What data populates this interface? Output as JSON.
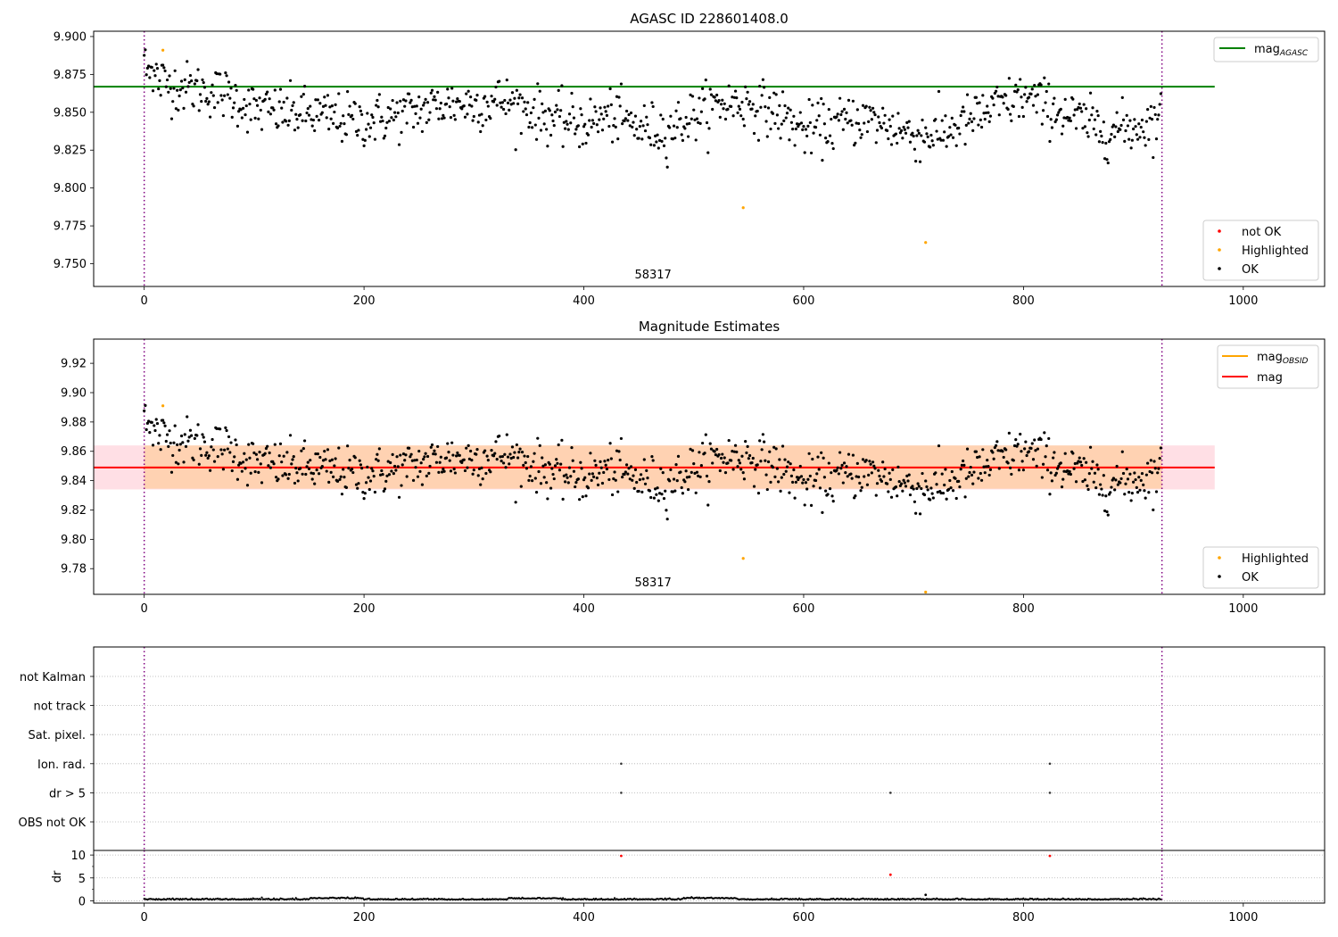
{
  "chart_data": [
    {
      "type": "scatter",
      "panel": "top",
      "title": "AGASC ID 228601408.0",
      "xlim": [
        -46,
        1074
      ],
      "ylim": [
        9.735,
        9.9035
      ],
      "xticks": [
        0,
        200,
        400,
        600,
        800,
        1000
      ],
      "yticks": [
        9.75,
        9.775,
        9.8,
        9.825,
        9.85,
        9.875,
        9.9
      ],
      "ytick_labels": [
        "9.750",
        "9.775",
        "9.800",
        "9.825",
        "9.850",
        "9.875",
        "9.900"
      ],
      "vlines": [
        0,
        926
      ],
      "mag_agasc": 9.8669,
      "mag_agasc_xrange": [
        -46,
        974
      ],
      "obsid_label": "58317",
      "obsid_label_x": 463,
      "n_points": 926,
      "series_ok_trend": {
        "x": [
          0,
          25,
          50,
          75,
          100,
          125,
          150,
          175,
          200,
          225,
          250,
          275,
          300,
          325,
          350,
          375,
          400,
          425,
          450,
          475,
          500,
          525,
          550,
          575,
          600,
          625,
          650,
          675,
          700,
          725,
          750,
          775,
          800,
          825,
          850,
          875,
          900,
          925
        ],
        "y": [
          9.875,
          9.868,
          9.865,
          9.862,
          9.852,
          9.85,
          9.849,
          9.846,
          9.844,
          9.847,
          9.851,
          9.856,
          9.855,
          9.858,
          9.852,
          9.845,
          9.842,
          9.848,
          9.84,
          9.838,
          9.848,
          9.856,
          9.856,
          9.85,
          9.838,
          9.841,
          9.846,
          9.842,
          9.835,
          9.836,
          9.844,
          9.853,
          9.86,
          9.853,
          9.845,
          9.838,
          9.84,
          9.846
        ],
        "scatter_sd": 0.01
      },
      "highlighted_points": [
        {
          "x": 17,
          "y": 9.891
        },
        {
          "x": 545,
          "y": 9.787
        },
        {
          "x": 711,
          "y": 9.764
        }
      ],
      "legend_line": {
        "label": "mag",
        "subscript": "AGASC",
        "color": "#008000"
      },
      "legend_points": [
        {
          "label": "not OK",
          "color": "#ff0000"
        },
        {
          "label": "Highlighted",
          "color": "#ffa500"
        },
        {
          "label": "OK",
          "color": "#000000"
        }
      ]
    },
    {
      "type": "scatter",
      "panel": "middle",
      "title": "Magnitude Estimates",
      "xlim": [
        -46,
        1074
      ],
      "ylim": [
        9.7625,
        9.9365
      ],
      "xticks": [
        0,
        200,
        400,
        600,
        800,
        1000
      ],
      "yticks": [
        9.78,
        9.8,
        9.82,
        9.84,
        9.86,
        9.88,
        9.9,
        9.92
      ],
      "ytick_labels": [
        "9.78",
        "9.80",
        "9.82",
        "9.84",
        "9.86",
        "9.88",
        "9.90",
        "9.92"
      ],
      "vlines": [
        0,
        926
      ],
      "mag": 9.849,
      "mag_band": [
        9.834,
        9.864
      ],
      "mag_obsid": 9.849,
      "mag_obsid_band": [
        9.8345,
        9.864
      ],
      "band_xrange": [
        -46,
        974
      ],
      "obsid_band_xrange": [
        0,
        926
      ],
      "obsid_label": "58317",
      "obsid_label_x": 463,
      "legend_line": [
        {
          "label": "mag",
          "subscript": "OBSID",
          "color": "#ffa500"
        },
        {
          "label": "mag",
          "subscript": "",
          "color": "#ff0000"
        }
      ],
      "legend_points": [
        {
          "label": "Highlighted",
          "color": "#ffa500"
        },
        {
          "label": "OK",
          "color": "#000000"
        }
      ]
    },
    {
      "type": "scatter",
      "panel": "flags",
      "xlim": [
        -46,
        1074
      ],
      "vlines": [
        0,
        926
      ],
      "categories": [
        "not Kalman",
        "not track",
        "Sat. pixel.",
        "Ion. rad.",
        "dr > 5",
        "OBS not OK"
      ],
      "flag_points": [
        {
          "category": "Ion. rad.",
          "x": 434
        },
        {
          "category": "Ion. rad.",
          "x": 824
        },
        {
          "category": "dr > 5",
          "x": 434
        },
        {
          "category": "dr > 5",
          "x": 679
        },
        {
          "category": "dr > 5",
          "x": 824
        }
      ]
    },
    {
      "type": "scatter",
      "panel": "dr",
      "ylabel": "dr",
      "xlim": [
        -46,
        1074
      ],
      "ylim": [
        -0.5,
        11
      ],
      "yticks": [
        0,
        5,
        10
      ],
      "xticks": [
        0,
        200,
        400,
        600,
        800,
        1000
      ],
      "vlines": [
        0,
        926
      ],
      "baseline_dr": 0.25,
      "outliers": [
        {
          "x": 434,
          "y": 9.8,
          "color": "#ff0000"
        },
        {
          "x": 679,
          "y": 5.7,
          "color": "#ff0000"
        },
        {
          "x": 824,
          "y": 9.8,
          "color": "#ff0000"
        },
        {
          "x": 711,
          "y": 1.3,
          "color": "#000000"
        }
      ]
    }
  ]
}
